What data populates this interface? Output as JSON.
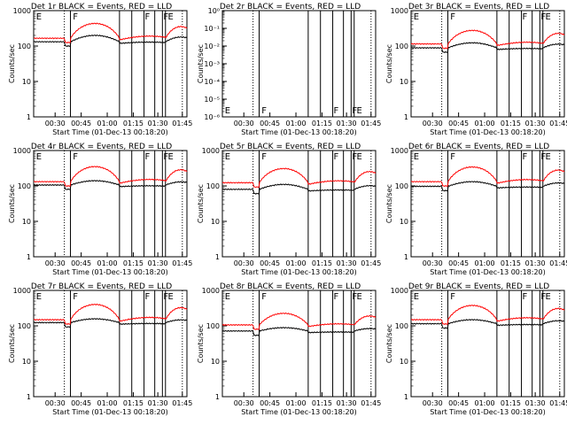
{
  "figure": {
    "colors": {
      "events": "#000000",
      "lld": "#ff0000",
      "frame": "#000000"
    },
    "x_ticks": [
      "00:30",
      "00:45",
      "01:00",
      "01:15",
      "01:30",
      "01:45"
    ],
    "xlabel": "Start Time (01-Dec-13 00:18:20)",
    "ylabel": "Counts/sec",
    "flag_labels": [
      "E",
      "F",
      "F",
      "F",
      "E"
    ]
  },
  "chart_data": [
    {
      "type": "line",
      "title": "Det 1r BLACK = Events, RED = LLD",
      "scale": "log",
      "ylim": [
        1,
        1200
      ],
      "y_ticks": [
        "1",
        "10",
        "100",
        "1000"
      ],
      "x_minutes": [
        0,
        90
      ],
      "series": [
        {
          "name": "Events",
          "base": 150,
          "peak": 80
        },
        {
          "name": "LLD",
          "base": 190,
          "peak": 320
        }
      ]
    },
    {
      "type": "line",
      "title": "Det 2r BLACK = Events, RED = LLD",
      "scale": "log",
      "ylim": [
        1e-06,
        1
      ],
      "y_ticks": [
        "10⁻⁶",
        "10⁻⁵",
        "10⁻⁴",
        "10⁻³",
        "10⁻²",
        "10⁻¹",
        "10⁰"
      ],
      "x_minutes": [
        0,
        90
      ],
      "series": []
    },
    {
      "type": "line",
      "title": "Det 3r BLACK = Events, RED = LLD",
      "scale": "log",
      "ylim": [
        1,
        1200
      ],
      "y_ticks": [
        "1",
        "10",
        "100",
        "1000"
      ],
      "x_minutes": [
        0,
        90
      ],
      "series": [
        {
          "name": "Events",
          "base": 100,
          "peak": 40
        },
        {
          "name": "LLD",
          "base": 130,
          "peak": 190
        }
      ]
    },
    {
      "type": "line",
      "title": "Det 4r BLACK = Events, RED = LLD",
      "scale": "log",
      "ylim": [
        1,
        1200
      ],
      "y_ticks": [
        "1",
        "10",
        "100",
        "1000"
      ],
      "x_minutes": [
        0,
        90
      ],
      "series": [
        {
          "name": "Events",
          "base": 120,
          "peak": 40
        },
        {
          "name": "LLD",
          "base": 150,
          "peak": 260
        }
      ]
    },
    {
      "type": "line",
      "title": "Det 5r BLACK = Events, RED = LLD",
      "scale": "log",
      "ylim": [
        1,
        1200
      ],
      "y_ticks": [
        "1",
        "10",
        "100",
        "1000"
      ],
      "x_minutes": [
        0,
        90
      ],
      "series": [
        {
          "name": "Events",
          "base": 90,
          "peak": 35
        },
        {
          "name": "LLD",
          "base": 140,
          "peak": 220
        }
      ]
    },
    {
      "type": "line",
      "title": "Det 6r BLACK = Events, RED = LLD",
      "scale": "log",
      "ylim": [
        1,
        1200
      ],
      "y_ticks": [
        "1",
        "10",
        "100",
        "1000"
      ],
      "x_minutes": [
        0,
        90
      ],
      "series": [
        {
          "name": "Events",
          "base": 110,
          "peak": 40
        },
        {
          "name": "LLD",
          "base": 150,
          "peak": 250
        }
      ]
    },
    {
      "type": "line",
      "title": "Det 7r BLACK = Events, RED = LLD",
      "scale": "log",
      "ylim": [
        1,
        1200
      ],
      "y_ticks": [
        "1",
        "10",
        "100",
        "1000"
      ],
      "x_minutes": [
        0,
        90
      ],
      "series": [
        {
          "name": "Events",
          "base": 140,
          "peak": 40
        },
        {
          "name": "LLD",
          "base": 170,
          "peak": 300
        }
      ]
    },
    {
      "type": "line",
      "title": "Det 8r BLACK = Events, RED = LLD",
      "scale": "log",
      "ylim": [
        1,
        1200
      ],
      "y_ticks": [
        "1",
        "10",
        "100",
        "1000"
      ],
      "x_minutes": [
        0,
        90
      ],
      "series": [
        {
          "name": "Events",
          "base": 80,
          "peak": 20
        },
        {
          "name": "LLD",
          "base": 120,
          "peak": 140
        }
      ]
    },
    {
      "type": "line",
      "title": "Det 9r BLACK = Events, RED = LLD",
      "scale": "log",
      "ylim": [
        1,
        1200
      ],
      "y_ticks": [
        "1",
        "10",
        "100",
        "1000"
      ],
      "x_minutes": [
        0,
        90
      ],
      "series": [
        {
          "name": "Events",
          "base": 130,
          "peak": 40
        },
        {
          "name": "LLD",
          "base": 170,
          "peak": 270
        }
      ]
    }
  ]
}
